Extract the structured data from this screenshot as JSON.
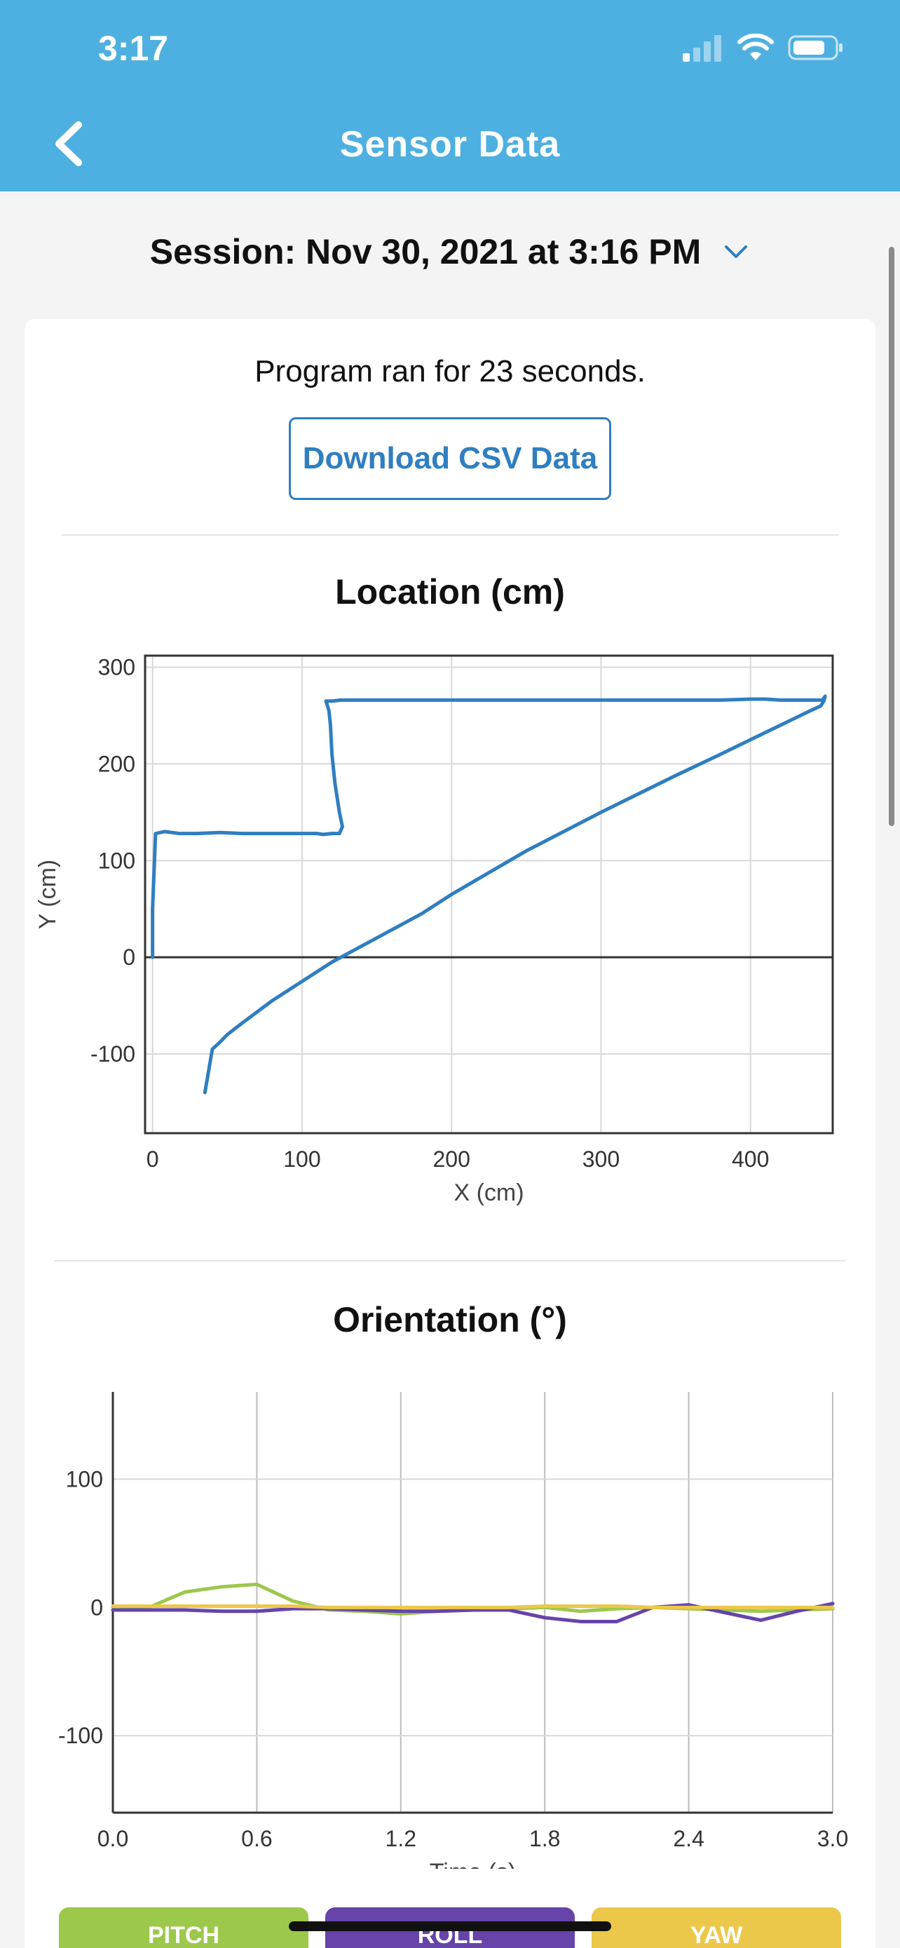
{
  "status_bar": {
    "time": "3:17"
  },
  "header": {
    "title": "Sensor Data"
  },
  "session": {
    "label": "Session: Nov 30, 2021 at 3:16 PM"
  },
  "summary": {
    "ran_text": "Program ran for 23 seconds."
  },
  "download_button": {
    "label": "Download CSV Data"
  },
  "colors": {
    "header_bg": "#4eb0e0",
    "accent": "#2f7ec0",
    "pitch": "#9cc84b",
    "roll": "#6644aa",
    "yaw": "#ecc84a"
  },
  "legend": {
    "pitch": "PITCH",
    "roll": "ROLL",
    "yaw": "YAW"
  },
  "chart_data": [
    {
      "type": "line",
      "title": "Location (cm)",
      "xlabel": "X (cm)",
      "ylabel": "Y (cm)",
      "xlim": [
        -5,
        455
      ],
      "ylim": [
        -182,
        312
      ],
      "xticks": [
        0,
        100,
        200,
        300,
        400
      ],
      "yticks": [
        -100,
        0,
        100,
        200,
        300
      ],
      "grid": true,
      "series": [
        {
          "name": "",
          "color": "#2f7ec0",
          "x": [
            0,
            0,
            2,
            8,
            18,
            30,
            45,
            60,
            80,
            100,
            110,
            114,
            120,
            125,
            127,
            125,
            122,
            120,
            119,
            118,
            117,
            116,
            118,
            120,
            126,
            150,
            200,
            250,
            300,
            350,
            380,
            400,
            410,
            420,
            430,
            440,
            448,
            450,
            449,
            447,
            440,
            420,
            400,
            380,
            350,
            300,
            250,
            200,
            180,
            150,
            120,
            100,
            80,
            60,
            50,
            45,
            40,
            35
          ],
          "y": [
            0,
            50,
            128,
            130,
            128,
            128,
            129,
            128,
            128,
            128,
            128,
            127,
            128,
            128,
            135,
            150,
            180,
            210,
            240,
            255,
            260,
            265,
            265,
            265,
            266,
            266,
            266,
            266,
            266,
            266,
            266,
            267,
            267,
            266,
            266,
            266,
            266,
            270,
            265,
            260,
            255,
            240,
            225,
            210,
            188,
            150,
            110,
            65,
            45,
            20,
            -5,
            -25,
            -45,
            -68,
            -80,
            -88,
            -95,
            -140
          ]
        }
      ]
    },
    {
      "type": "line",
      "title": "Orientation (°)",
      "xlabel": "Time (s)",
      "ylabel": "",
      "xlim": [
        0,
        3.0
      ],
      "ylim": [
        -160,
        168
      ],
      "xticks": [
        "0.0",
        "0.6",
        "1.2",
        "1.8",
        "2.4",
        "3.0"
      ],
      "yticks": [
        -100,
        0,
        100
      ],
      "grid": true,
      "series": [
        {
          "name": "PITCH",
          "color": "#9cc84b",
          "x": [
            0,
            0.15,
            0.3,
            0.45,
            0.6,
            0.75,
            0.9,
            1.05,
            1.2,
            1.35,
            1.5,
            1.65,
            1.8,
            1.95,
            2.1,
            2.25,
            2.4,
            2.55,
            2.7,
            2.85,
            3.0
          ],
          "y": [
            0,
            0,
            12,
            16,
            18,
            5,
            -2,
            -3,
            -5,
            -3,
            -2,
            -1,
            0,
            -3,
            -1,
            0,
            -1,
            -2,
            -3,
            -2,
            -1
          ]
        },
        {
          "name": "ROLL",
          "color": "#6644aa",
          "x": [
            0,
            0.15,
            0.3,
            0.45,
            0.6,
            0.75,
            0.9,
            1.05,
            1.2,
            1.35,
            1.5,
            1.65,
            1.8,
            1.95,
            2.1,
            2.25,
            2.4,
            2.55,
            2.7,
            2.85,
            3.0
          ],
          "y": [
            -2,
            -2,
            -2,
            -3,
            -3,
            -1,
            -1,
            -2,
            -3,
            -3,
            -2,
            -2,
            -8,
            -11,
            -11,
            0,
            2,
            -4,
            -10,
            -3,
            3
          ]
        },
        {
          "name": "YAW",
          "color": "#ecc84a",
          "x": [
            0,
            0.15,
            0.3,
            0.45,
            0.6,
            0.75,
            0.9,
            1.05,
            1.2,
            1.35,
            1.5,
            1.65,
            1.8,
            1.95,
            2.1,
            2.25,
            2.4,
            2.55,
            2.7,
            2.85,
            3.0
          ],
          "y": [
            1,
            1,
            1,
            1,
            1,
            1,
            0,
            0,
            0,
            0,
            0,
            0,
            1,
            1,
            1,
            0,
            0,
            0,
            0,
            0,
            0
          ]
        }
      ]
    }
  ]
}
